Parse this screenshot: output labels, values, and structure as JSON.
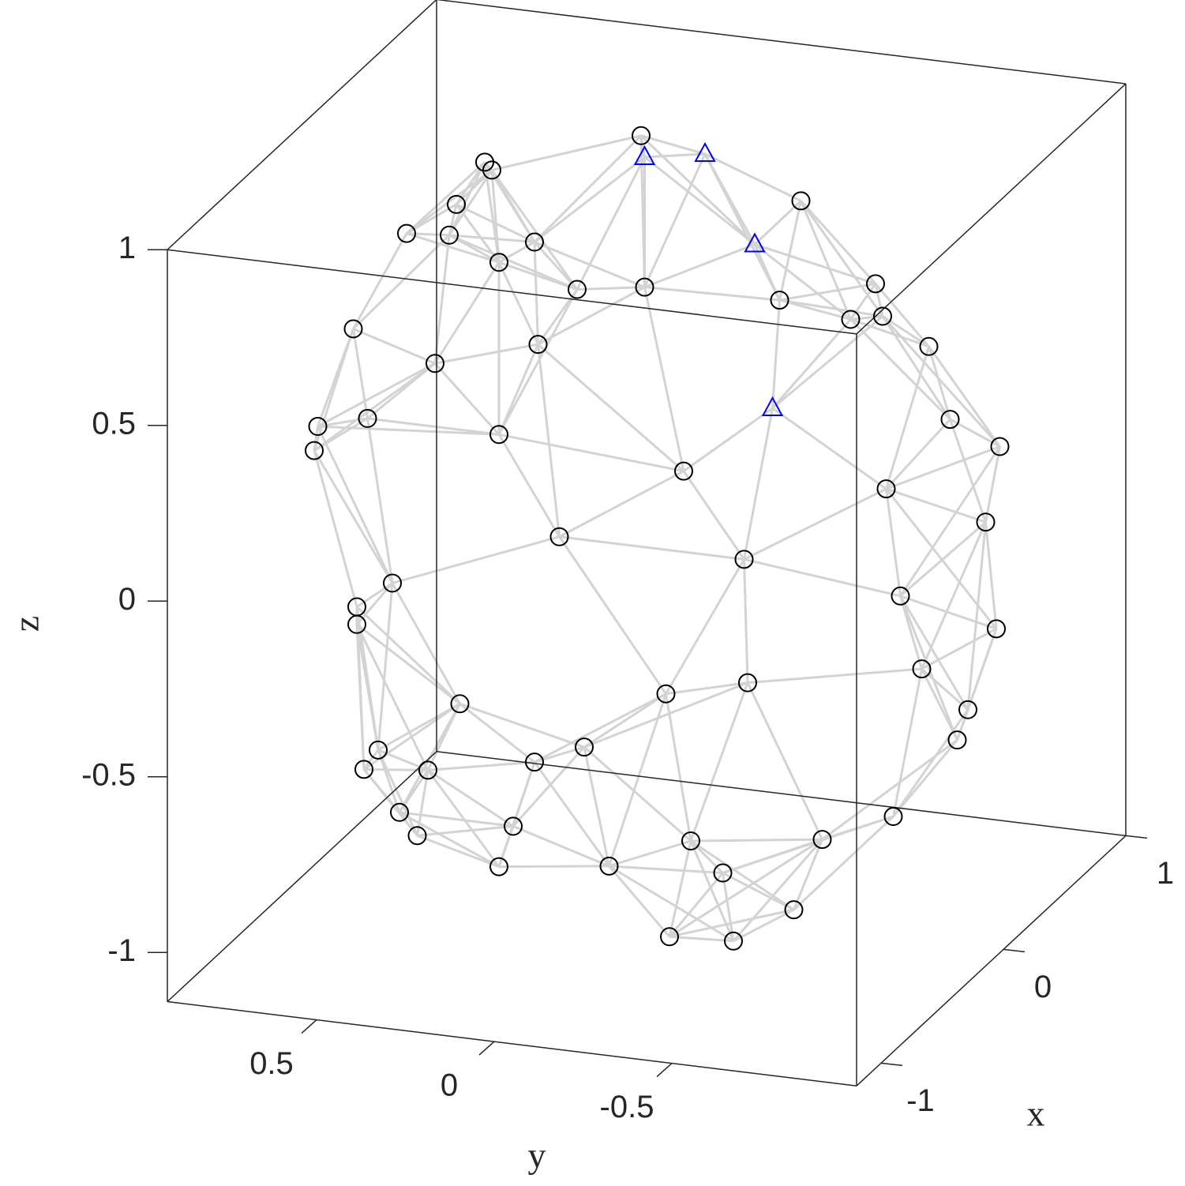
{
  "chart_data": {
    "type": "scatter3d",
    "xlabel": "x",
    "ylabel": "y",
    "zlabel": "z",
    "xlim": [
      -1.2,
      1.0
    ],
    "ylim": [
      -1.02,
      0.92
    ],
    "zlim": [
      -1.14,
      1.0
    ],
    "xticks": [
      -1,
      0,
      1
    ],
    "yticks": [
      -0.5,
      0,
      0.5
    ],
    "zticks": [
      -1,
      -0.5,
      0,
      0.5,
      1
    ],
    "box": true,
    "mesh_color": "#d3d3d3",
    "series": [
      {
        "color": "#000000",
        "marker": "circle",
        "x": [
          0,
          0,
          0,
          0,
          0,
          0,
          0,
          0,
          0,
          0,
          0,
          0,
          0,
          0,
          0,
          0,
          0,
          0,
          0,
          0,
          0,
          0,
          0,
          0,
          0,
          0,
          0,
          0,
          0,
          0,
          0,
          0,
          0,
          0,
          0,
          0,
          0,
          0,
          0,
          0,
          0,
          0,
          0,
          0,
          0,
          0,
          0,
          0,
          0,
          0,
          0,
          0,
          0,
          0,
          0,
          0,
          0,
          0
        ],
        "y": [
          0.0,
          0.44,
          0.42,
          -0.45,
          0.52,
          0.66,
          0.54,
          0.3,
          0.4,
          0.18,
          -0.01,
          -0.39,
          -0.66,
          -0.68,
          -0.59,
          -0.81,
          0.29,
          0.81,
          0.58,
          -0.87,
          -1.01,
          0.91,
          0.92,
          0.77,
          0.4,
          -0.12,
          -0.69,
          -0.97,
          0.23,
          -0.29,
          -0.73,
          -1.0,
          0.7,
          0.8,
          0.8,
          -0.3,
          -0.79,
          -0.92,
          -0.89,
          -0.07,
          0.51,
          0.16,
          0.3,
          0.74,
          0.78,
          0.6,
          -0.71,
          -0.51,
          0.68,
          0.36,
          -0.14,
          0.63,
          -0.23,
          0.09,
          0.4,
          -0.43,
          -0.08,
          -0.26
        ],
        "z": [
          1.05,
          0.92,
          0.9,
          0.92,
          0.79,
          0.69,
          0.7,
          0.71,
          0.64,
          0.59,
          0.62,
          0.63,
          0.71,
          0.62,
          0.6,
          0.55,
          0.42,
          0.4,
          0.33,
          0.35,
          0.29,
          0.11,
          0.04,
          0.15,
          0.15,
          0.11,
          0.13,
          0.07,
          -0.12,
          -0.12,
          -0.17,
          -0.23,
          -0.31,
          -0.39,
          -0.44,
          -0.47,
          -0.37,
          -0.47,
          -0.56,
          -0.53,
          -0.63,
          -0.71,
          -0.77,
          -0.79,
          -0.85,
          -0.83,
          -0.8,
          -0.89,
          -0.96,
          -0.96,
          -0.94,
          -1.02,
          -1.02,
          -1.04,
          -1.08,
          -1.1,
          -1.22,
          -1.21
        ]
      },
      {
        "color": "#0000ff",
        "marker": "triangle",
        "x": [
          0,
          0,
          0,
          0
        ],
        "y": [
          -0.01,
          -0.18,
          -0.32,
          -0.37
        ],
        "z": [
          0.99,
          1.02,
          0.78,
          0.32
        ]
      }
    ]
  }
}
